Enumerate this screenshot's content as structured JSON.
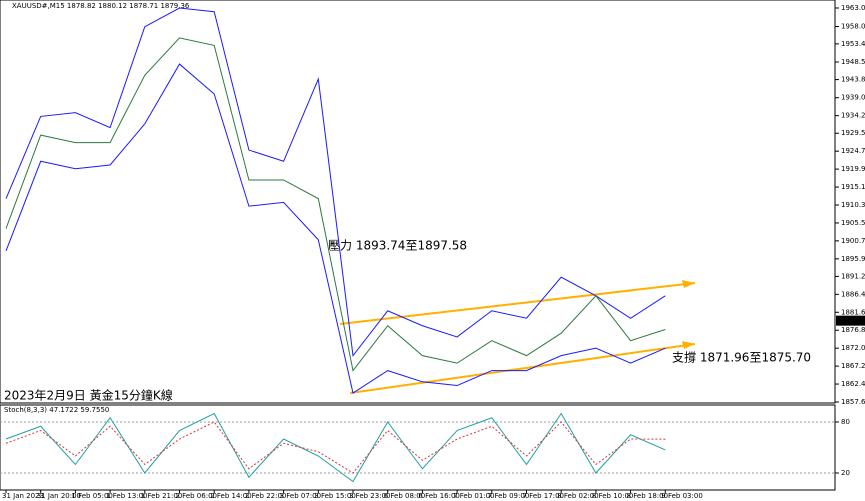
{
  "chart_data": [
    {
      "type": "line",
      "title": "XAUUSD#,M15  1878.82 1880.12 1878.71 1879.36",
      "categories": [
        "31 Jan 2023",
        "31 Jan 20:00",
        "1 Feb 05:00",
        "1 Feb 13:00",
        "1 Feb 21:00",
        "2 Feb 06:00",
        "2 Feb 14:00",
        "2 Feb 22:00",
        "3 Feb 07:00",
        "3 Feb 15:00",
        "3 Feb 23:00",
        "6 Feb 08:00",
        "6 Feb 16:00",
        "7 Feb 01:00",
        "7 Feb 09:00",
        "7 Feb 17:00",
        "8 Feb 02:00",
        "8 Feb 10:00",
        "8 Feb 18:00",
        "9 Feb 03:00"
      ],
      "series": [
        {
          "color": "#1a1aff",
          "values": [
            1912,
            1934,
            1935,
            1931,
            1958,
            1963,
            1962,
            1925,
            1922,
            1944,
            1870,
            1882,
            1878,
            1875,
            1882,
            1880,
            1891,
            1886,
            1880,
            1886
          ]
        },
        {
          "color": "#1a1aff",
          "values": [
            1898,
            1922,
            1920,
            1921,
            1932,
            1948,
            1940,
            1910,
            1911,
            1901,
            1860,
            1866,
            1863,
            1862,
            1866,
            1866,
            1870,
            1872,
            1868,
            1872
          ]
        },
        {
          "color": "#2b7a3d",
          "values": [
            1904,
            1929,
            1927,
            1927,
            1945,
            1955,
            1953,
            1917,
            1917,
            1912,
            1866,
            1878,
            1870,
            1868,
            1874,
            1870,
            1876,
            1886,
            1874,
            1877
          ]
        }
      ],
      "current_price": {
        "value": 1879.36,
        "label": "1879.36"
      },
      "ylim": [
        1857.33,
        1965.14
      ],
      "yticks": [
        {
          "value": 1963,
          "label": "1963.00"
        },
        {
          "value": 1958.05,
          "label": "1958.05"
        },
        {
          "value": 1953.4,
          "label": "1953.40"
        },
        {
          "value": 1948.55,
          "label": "1948.55"
        },
        {
          "value": 1943.85,
          "label": "1943.85"
        },
        {
          "value": 1939,
          "label": "1939.00"
        },
        {
          "value": 1934.2,
          "label": "1934.20"
        },
        {
          "value": 1929.5,
          "label": "1929.50"
        },
        {
          "value": 1924.7,
          "label": "1924.70"
        },
        {
          "value": 1919.9,
          "label": "1919.90"
        },
        {
          "value": 1915.1,
          "label": "1915.10"
        },
        {
          "value": 1910.3,
          "label": "1910.30"
        },
        {
          "value": 1905.5,
          "label": "1905.50"
        },
        {
          "value": 1900.7,
          "label": "1900.70"
        },
        {
          "value": 1895.9,
          "label": "1895.90"
        },
        {
          "value": 1891.2,
          "label": "1891.20"
        },
        {
          "value": 1886.4,
          "label": "1886.40"
        },
        {
          "value": 1881.6,
          "label": "1881.60"
        },
        {
          "value": 1876.8,
          "label": "1876.80"
        },
        {
          "value": 1872,
          "label": "1872.00"
        },
        {
          "value": 1867.2,
          "label": "1867.20"
        },
        {
          "value": 1862.4,
          "label": "1862.40"
        },
        {
          "value": 1857.6,
          "label": "1857.60"
        }
      ],
      "annotations": [
        "壓力 1893.74至1897.58",
        "支撐 1871.96至1875.70",
        "2023年2月9日 黃金15分鐘K線"
      ]
    },
    {
      "type": "line",
      "title": "Stoch(8,3,3) 47.1722 59.7550",
      "series": [
        {
          "color": "#20a0a0",
          "values": [
            60,
            75,
            30,
            85,
            20,
            70,
            90,
            15,
            60,
            40,
            10,
            80,
            25,
            70,
            85,
            30,
            90,
            20,
            65,
            47.1722
          ]
        },
        {
          "color": "#e03030",
          "values": [
            55,
            70,
            40,
            75,
            30,
            60,
            80,
            25,
            55,
            45,
            20,
            70,
            35,
            60,
            75,
            40,
            80,
            30,
            60,
            59.755
          ]
        }
      ],
      "ylim": [
        0,
        100
      ],
      "yticks": [
        20,
        80
      ]
    }
  ]
}
